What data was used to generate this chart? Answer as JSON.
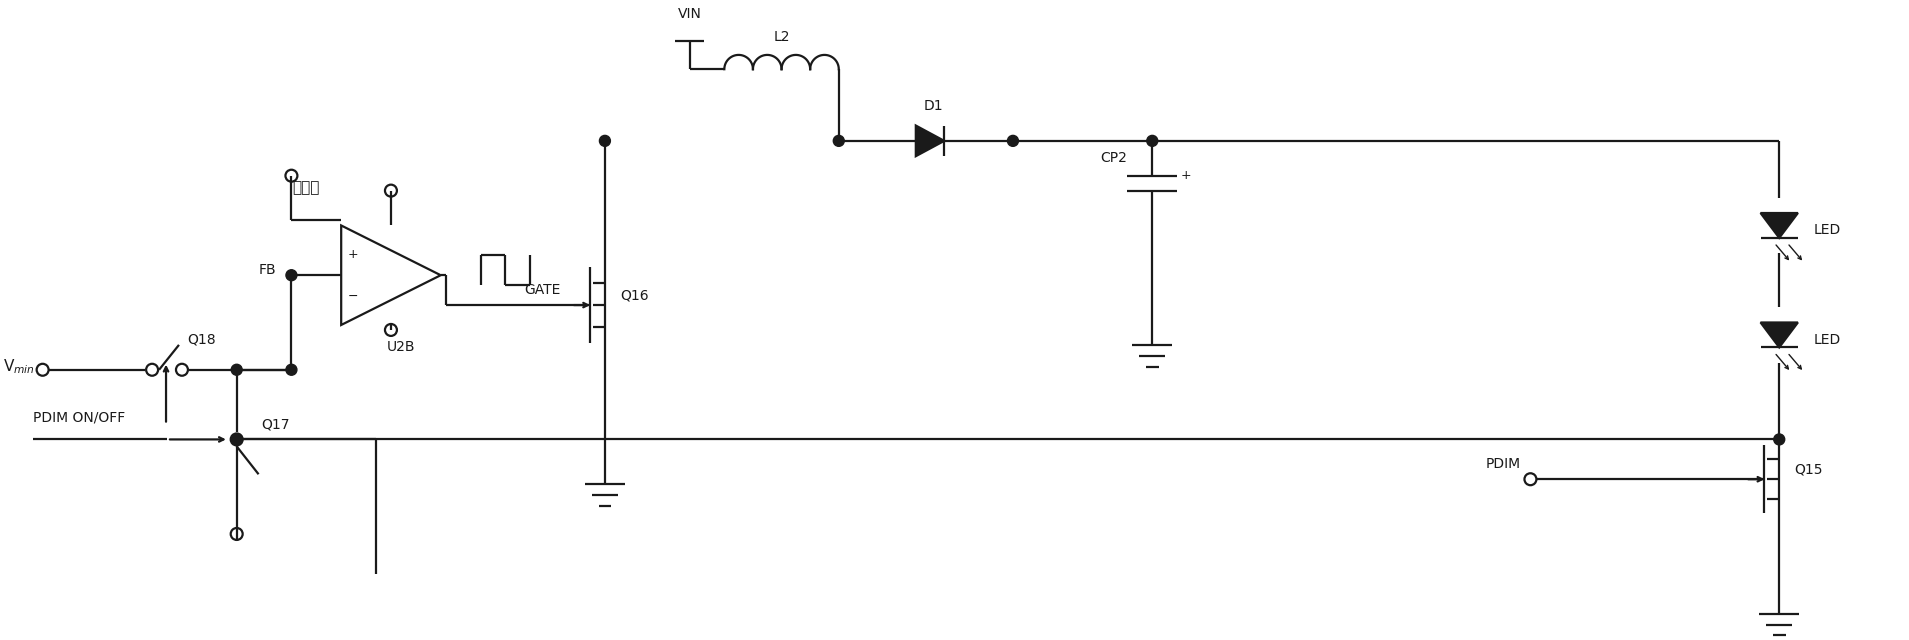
{
  "bg_color": "#ffffff",
  "line_color": "#1a1a1a",
  "line_width": 1.6,
  "fig_width": 19.09,
  "fig_height": 6.4,
  "labels": {
    "Vmin": "V$_{min}$",
    "Q18": "Q18",
    "Q17": "Q17",
    "Q16": "Q16",
    "Q15": "Q15",
    "FB": "FB",
    "U2B": "U2B",
    "triangle": "三角波",
    "GATE": "GATE",
    "VIN": "VIN",
    "L2": "L2",
    "D1": "D1",
    "CP2": "CP2",
    "LED": "LED",
    "PDIM_label": "PDIM ON/OFF",
    "PDIM2": "PDIM"
  }
}
